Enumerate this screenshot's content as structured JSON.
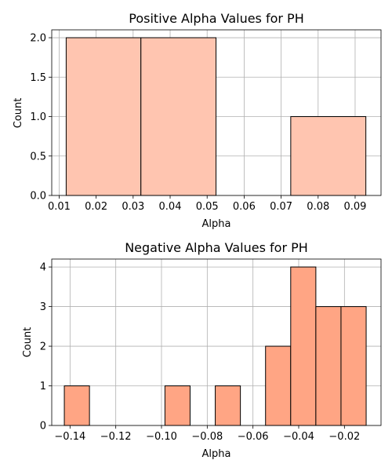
{
  "chart_data": [
    {
      "type": "bar",
      "title": "Positive Alpha Values for PH",
      "xlabel": "Alpha",
      "ylabel": "Count",
      "xlim": [
        0.008,
        0.097
      ],
      "ylim": [
        0,
        2.1
      ],
      "xticks": [
        0.01,
        0.02,
        0.03,
        0.04,
        0.05,
        0.06,
        0.07,
        0.08,
        0.09
      ],
      "xtick_labels": [
        "0.01",
        "0.02",
        "0.03",
        "0.04",
        "0.05",
        "0.06",
        "0.07",
        "0.08",
        "0.09"
      ],
      "yticks": [
        0,
        0.5,
        1,
        1.5,
        2
      ],
      "ytick_labels": [
        "0.0",
        "0.5",
        "1.0",
        "1.5",
        "2.0"
      ],
      "grid": true,
      "color": "#FFC5B0",
      "bins": [
        {
          "x0": 0.0119,
          "x1": 0.0321,
          "count": 2
        },
        {
          "x0": 0.0321,
          "x1": 0.0524,
          "count": 2
        },
        {
          "x0": 0.0524,
          "x1": 0.0726,
          "count": 0
        },
        {
          "x0": 0.0726,
          "x1": 0.0929,
          "count": 1
        }
      ]
    },
    {
      "type": "bar",
      "title": "Negative Alpha Values for PH",
      "xlabel": "Alpha",
      "ylabel": "Count",
      "xlim": [
        -0.148,
        -0.004
      ],
      "ylim": [
        0,
        4.2
      ],
      "xticks": [
        -0.14,
        -0.12,
        -0.1,
        -0.08,
        -0.06,
        -0.04,
        -0.02
      ],
      "xtick_labels": [
        "−0.14",
        "−0.12",
        "−0.10",
        "−0.08",
        "−0.06",
        "−0.04",
        "−0.02"
      ],
      "yticks": [
        0,
        1,
        2,
        3,
        4
      ],
      "ytick_labels": [
        "0",
        "1",
        "2",
        "3",
        "4"
      ],
      "grid": true,
      "color": "#FFA584",
      "bins": [
        {
          "x0": -0.1425,
          "x1": -0.1315,
          "count": 1
        },
        {
          "x0": -0.1315,
          "x1": -0.1205,
          "count": 0
        },
        {
          "x0": -0.1205,
          "x1": -0.1095,
          "count": 0
        },
        {
          "x0": -0.1095,
          "x1": -0.0985,
          "count": 0
        },
        {
          "x0": -0.0985,
          "x1": -0.0875,
          "count": 1
        },
        {
          "x0": -0.0875,
          "x1": -0.0765,
          "count": 0
        },
        {
          "x0": -0.0765,
          "x1": -0.0655,
          "count": 1
        },
        {
          "x0": -0.0655,
          "x1": -0.0545,
          "count": 0
        },
        {
          "x0": -0.0545,
          "x1": -0.0435,
          "count": 2
        },
        {
          "x0": -0.0435,
          "x1": -0.0325,
          "count": 4
        },
        {
          "x0": -0.0325,
          "x1": -0.0215,
          "count": 3
        },
        {
          "x0": -0.0215,
          "x1": -0.0105,
          "count": 3
        }
      ]
    }
  ]
}
